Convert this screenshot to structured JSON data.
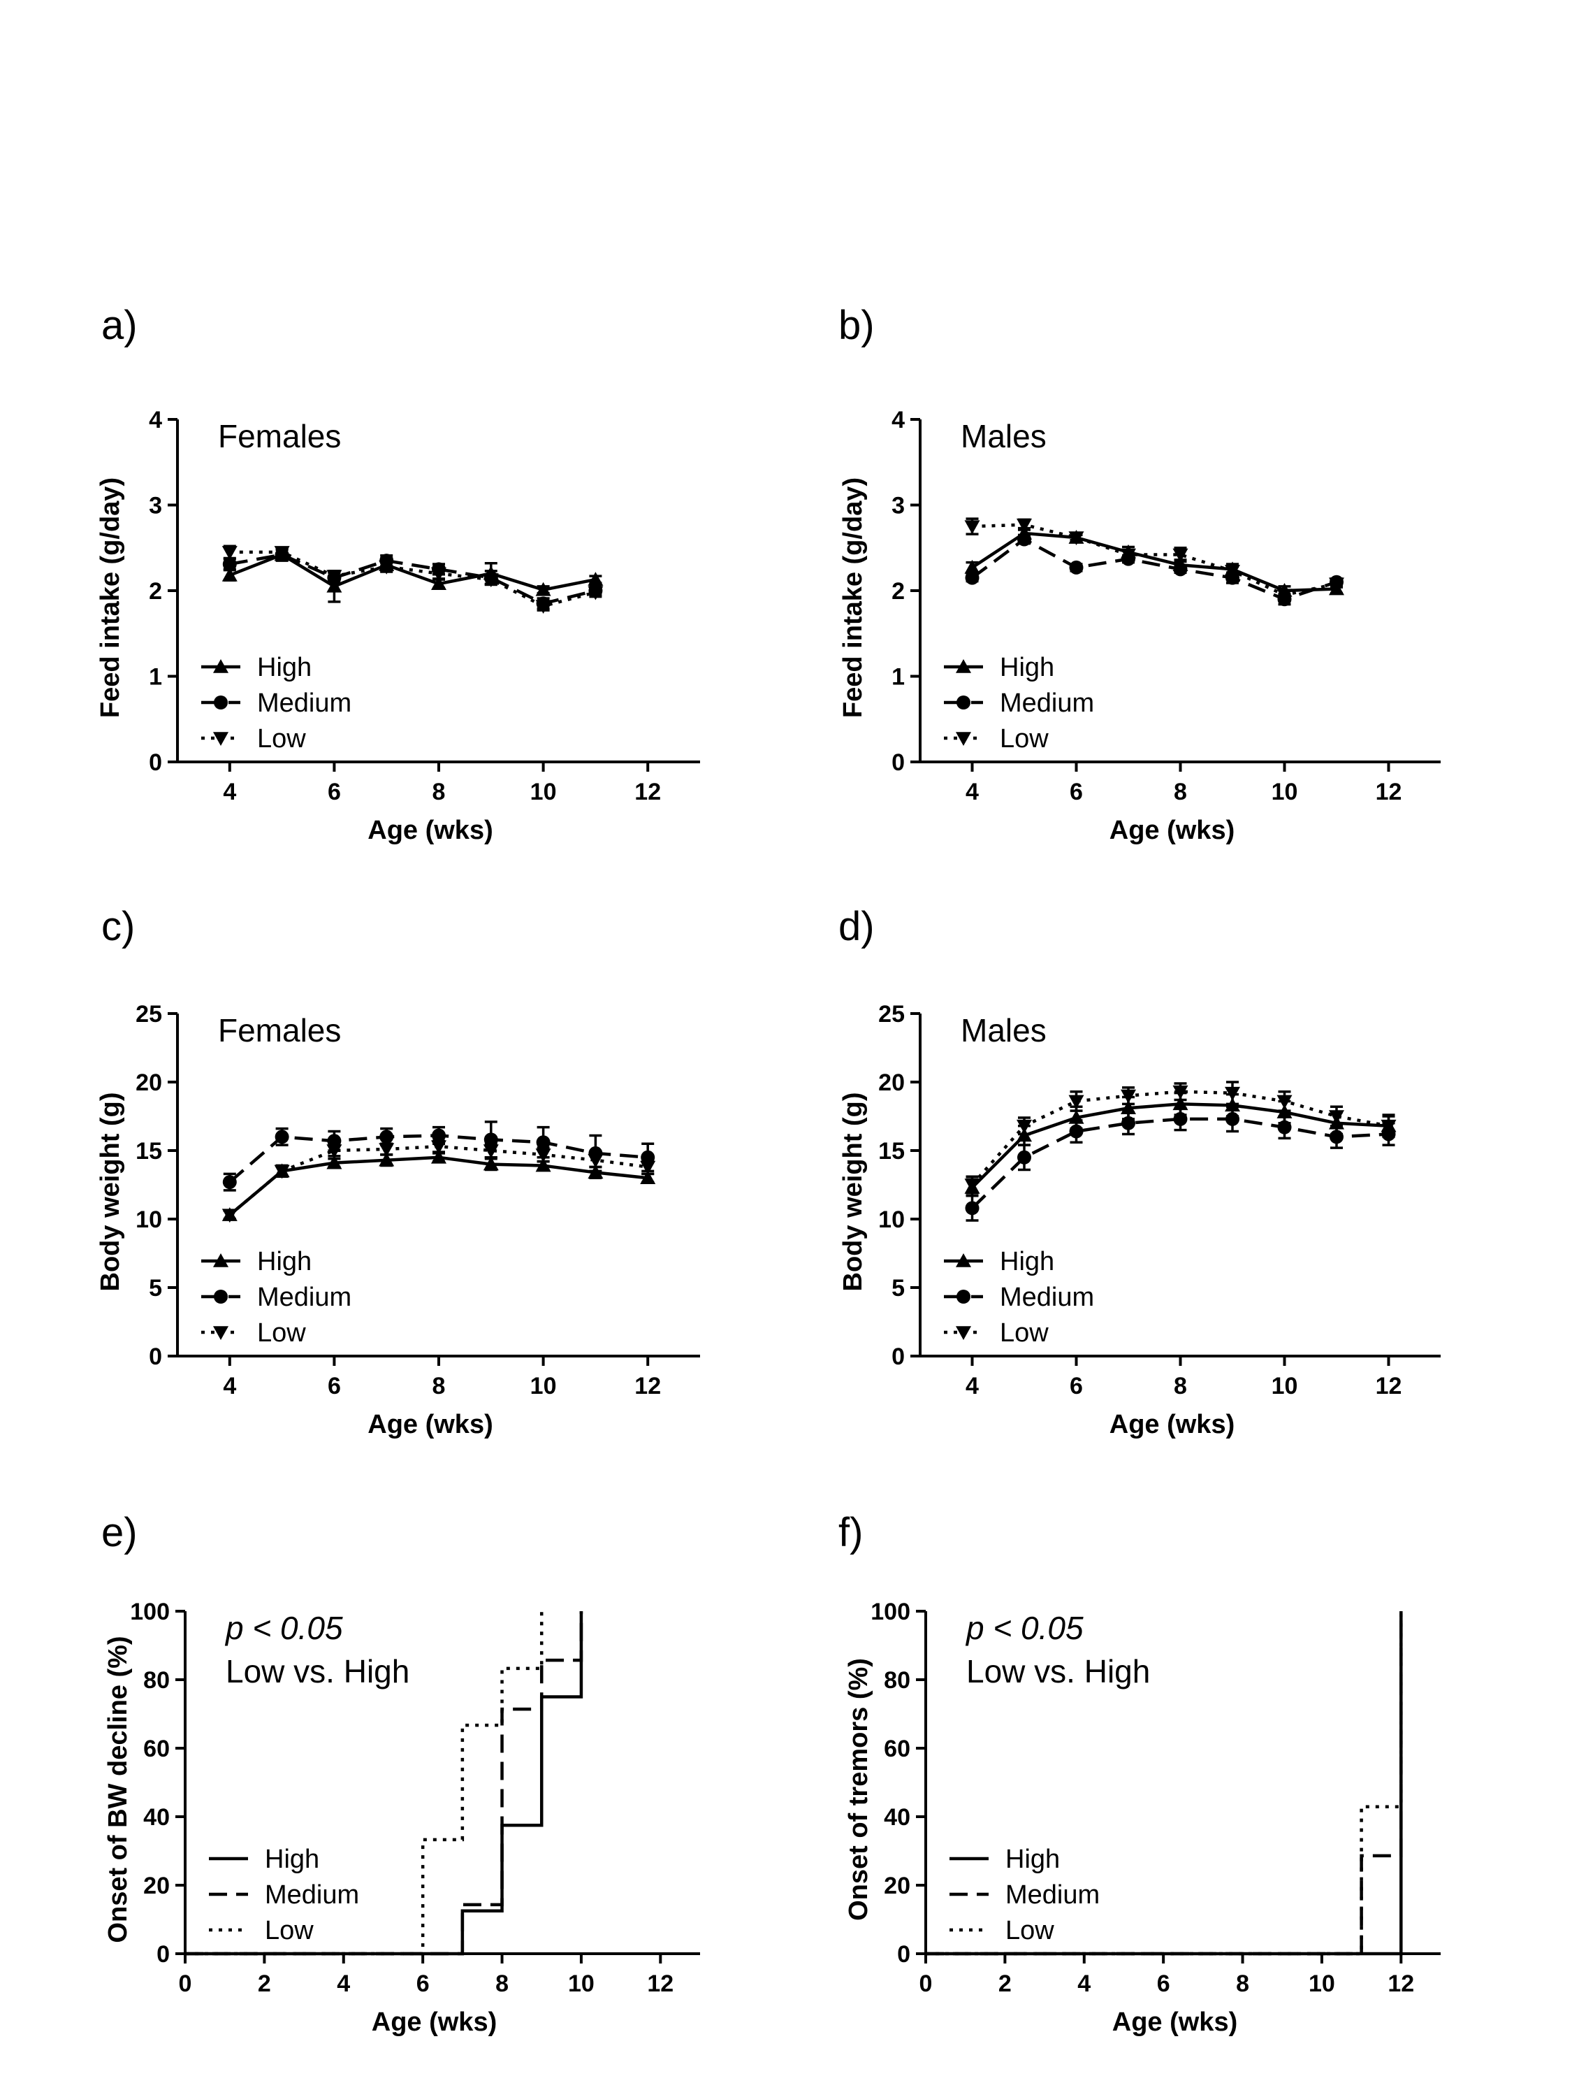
{
  "figure": {
    "background": "#ffffff",
    "ink": "#000000"
  },
  "legend_labels": [
    "High",
    "Medium",
    "Low"
  ],
  "chart_data": [
    {
      "id": "a",
      "panel_label": "a)",
      "type": "line",
      "annotation": [
        "Females"
      ],
      "xlabel": "Age (wks)",
      "ylabel": "Feed intake (g/day)",
      "xlim": [
        3,
        13
      ],
      "ylim": [
        0,
        4
      ],
      "xticks": [
        4,
        6,
        8,
        10,
        12
      ],
      "yticks": [
        0,
        1,
        2,
        3,
        4
      ],
      "legend_position": "bottom-left",
      "series": [
        {
          "name": "High",
          "marker": "triangle-up",
          "dash": "solid",
          "x": [
            4,
            5,
            6,
            7,
            8,
            9,
            10,
            11
          ],
          "y": [
            2.18,
            2.42,
            2.05,
            2.3,
            2.08,
            2.2,
            2.01,
            2.13
          ],
          "err": [
            0.06,
            0.07,
            0.18,
            0.08,
            0.05,
            0.12,
            0.04,
            0.04
          ]
        },
        {
          "name": "Medium",
          "marker": "circle",
          "dash": "dashed",
          "x": [
            4,
            5,
            6,
            7,
            8,
            9,
            10,
            11
          ],
          "y": [
            2.31,
            2.42,
            2.15,
            2.35,
            2.25,
            2.15,
            1.85,
            2.0
          ],
          "err": [
            0.06,
            0.06,
            0.06,
            0.06,
            0.06,
            0.08,
            0.06,
            0.05
          ]
        },
        {
          "name": "Low",
          "marker": "triangle-down",
          "dash": "dotted",
          "x": [
            4,
            5,
            6,
            7,
            8,
            9,
            10,
            11
          ],
          "y": [
            2.45,
            2.45,
            2.17,
            2.28,
            2.2,
            2.13,
            1.82,
            1.98
          ],
          "err": [
            0.07,
            0.05,
            0.05,
            0.05,
            0.06,
            0.06,
            0.05,
            0.05
          ]
        }
      ]
    },
    {
      "id": "b",
      "panel_label": "b)",
      "type": "line",
      "annotation": [
        "Males"
      ],
      "xlabel": "Age (wks)",
      "ylabel": "Feed intake (g/day)",
      "xlim": [
        3,
        13
      ],
      "ylim": [
        0,
        4
      ],
      "xticks": [
        4,
        6,
        8,
        10,
        12
      ],
      "yticks": [
        0,
        1,
        2,
        3,
        4
      ],
      "legend_position": "bottom-left",
      "series": [
        {
          "name": "High",
          "marker": "triangle-up",
          "dash": "solid",
          "x": [
            4,
            5,
            6,
            7,
            8,
            9,
            10,
            11
          ],
          "y": [
            2.27,
            2.67,
            2.62,
            2.45,
            2.3,
            2.25,
            2.0,
            2.02
          ],
          "err": [
            0.06,
            0.06,
            0.03,
            0.06,
            0.06,
            0.06,
            0.05,
            0.05
          ]
        },
        {
          "name": "Medium",
          "marker": "circle",
          "dash": "dashed",
          "x": [
            4,
            5,
            6,
            7,
            8,
            9,
            10,
            11
          ],
          "y": [
            2.15,
            2.6,
            2.27,
            2.37,
            2.25,
            2.15,
            1.9,
            2.1
          ],
          "err": [
            0.04,
            0.05,
            0.04,
            0.04,
            0.04,
            0.06,
            0.06,
            0.04
          ]
        },
        {
          "name": "Low",
          "marker": "triangle-down",
          "dash": "dotted",
          "x": [
            4,
            5,
            6,
            7,
            8,
            9,
            10,
            11
          ],
          "y": [
            2.75,
            2.77,
            2.62,
            2.42,
            2.42,
            2.23,
            1.95,
            2.08
          ],
          "err": [
            0.09,
            0.06,
            0.04,
            0.05,
            0.08,
            0.05,
            0.05,
            0.04
          ]
        }
      ]
    },
    {
      "id": "c",
      "panel_label": "c)",
      "type": "line",
      "annotation": [
        "Females"
      ],
      "xlabel": "Age (wks)",
      "ylabel": "Body weight (g)",
      "xlim": [
        3,
        13
      ],
      "ylim": [
        0,
        25
      ],
      "xticks": [
        4,
        6,
        8,
        10,
        12
      ],
      "yticks": [
        0,
        5,
        10,
        15,
        20,
        25
      ],
      "legend_position": "bottom-left",
      "series": [
        {
          "name": "High",
          "marker": "triangle-up",
          "dash": "solid",
          "x": [
            4,
            5,
            6,
            7,
            8,
            9,
            10,
            11,
            12
          ],
          "y": [
            10.3,
            13.5,
            14.1,
            14.3,
            14.5,
            14.0,
            13.9,
            13.4,
            13.0
          ],
          "err": [
            0.3,
            0.4,
            0.3,
            0.4,
            0.3,
            0.4,
            0.3,
            0.4,
            0.3
          ]
        },
        {
          "name": "Medium",
          "marker": "circle",
          "dash": "dashed",
          "x": [
            4,
            5,
            6,
            7,
            8,
            9,
            10,
            11,
            12
          ],
          "y": [
            12.7,
            16.0,
            15.7,
            16.0,
            16.1,
            15.8,
            15.6,
            14.8,
            14.5
          ],
          "err": [
            0.6,
            0.6,
            0.7,
            0.6,
            0.6,
            1.3,
            1.1,
            1.3,
            1.0
          ]
        },
        {
          "name": "Low",
          "marker": "triangle-down",
          "dash": "dotted",
          "x": [
            4,
            5,
            6,
            7,
            8,
            9,
            10,
            11,
            12
          ],
          "y": [
            10.3,
            13.5,
            15.0,
            15.1,
            15.3,
            15.0,
            14.7,
            14.3,
            13.8
          ],
          "err": [
            0.3,
            0.4,
            0.4,
            0.4,
            0.4,
            0.5,
            0.5,
            0.5,
            0.5
          ]
        }
      ]
    },
    {
      "id": "d",
      "panel_label": "d)",
      "type": "line",
      "annotation": [
        "Males"
      ],
      "xlabel": "Age (wks)",
      "ylabel": "Body weight (g)",
      "xlim": [
        3,
        13
      ],
      "ylim": [
        0,
        25
      ],
      "xticks": [
        4,
        6,
        8,
        10,
        12
      ],
      "yticks": [
        0,
        5,
        10,
        15,
        20,
        25
      ],
      "legend_position": "bottom-left",
      "series": [
        {
          "name": "High",
          "marker": "triangle-up",
          "dash": "solid",
          "x": [
            4,
            5,
            6,
            7,
            8,
            9,
            10,
            11,
            12
          ],
          "y": [
            12.3,
            16.1,
            17.4,
            18.1,
            18.4,
            18.3,
            17.8,
            17.0,
            16.8
          ],
          "err": [
            0.6,
            0.7,
            0.8,
            0.8,
            0.8,
            0.8,
            0.8,
            0.8,
            0.8
          ]
        },
        {
          "name": "Medium",
          "marker": "circle",
          "dash": "dashed",
          "x": [
            4,
            5,
            6,
            7,
            8,
            9,
            10,
            11,
            12
          ],
          "y": [
            10.8,
            14.5,
            16.4,
            17.0,
            17.3,
            17.3,
            16.7,
            16.0,
            16.2
          ],
          "err": [
            0.9,
            0.9,
            0.8,
            0.8,
            0.8,
            0.9,
            0.8,
            0.8,
            0.8
          ]
        },
        {
          "name": "Low",
          "marker": "triangle-down",
          "dash": "dotted",
          "x": [
            4,
            5,
            6,
            7,
            8,
            9,
            10,
            11,
            12
          ],
          "y": [
            12.5,
            16.8,
            18.6,
            19.0,
            19.3,
            19.2,
            18.6,
            17.5,
            16.8
          ],
          "err": [
            0.6,
            0.6,
            0.7,
            0.6,
            0.6,
            0.8,
            0.7,
            0.7,
            0.7
          ]
        }
      ]
    },
    {
      "id": "e",
      "panel_label": "e)",
      "type": "line",
      "subtype": "step",
      "annotation": [
        "p < 0.05",
        "Low vs. High"
      ],
      "xlabel": "Age (wks)",
      "ylabel": "Onset of BW decline (%)",
      "xlim": [
        0,
        13
      ],
      "ylim": [
        0,
        100
      ],
      "xticks": [
        0,
        2,
        4,
        6,
        8,
        10,
        12
      ],
      "yticks": [
        0,
        20,
        40,
        60,
        80,
        100
      ],
      "legend_position": "bottom-left",
      "series": [
        {
          "name": "High",
          "dash": "solid",
          "x": [
            0,
            7,
            8,
            9,
            10
          ],
          "y": [
            0,
            12.5,
            37.5,
            75,
            100
          ]
        },
        {
          "name": "Medium",
          "dash": "dashed",
          "x": [
            0,
            7,
            8,
            9,
            10
          ],
          "y": [
            0,
            14.3,
            71.4,
            85.7,
            100
          ]
        },
        {
          "name": "Low",
          "dash": "dotted",
          "x": [
            0,
            6,
            7,
            8,
            9
          ],
          "y": [
            0,
            33.3,
            66.7,
            83.3,
            100
          ]
        }
      ]
    },
    {
      "id": "f",
      "panel_label": "f)",
      "type": "line",
      "subtype": "step",
      "annotation": [
        "p < 0.05",
        "Low vs. High"
      ],
      "xlabel": "Age (wks)",
      "ylabel": "Onset of tremors (%)",
      "xlim": [
        0,
        13
      ],
      "ylim": [
        0,
        100
      ],
      "xticks": [
        0,
        2,
        4,
        6,
        8,
        10,
        12
      ],
      "yticks": [
        0,
        20,
        40,
        60,
        80,
        100
      ],
      "legend_position": "bottom-left",
      "series": [
        {
          "name": "High",
          "dash": "solid",
          "x": [
            0,
            12
          ],
          "y": [
            0,
            100
          ]
        },
        {
          "name": "Medium",
          "dash": "dashed",
          "x": [
            0,
            11,
            12
          ],
          "y": [
            0,
            28.6,
            100
          ]
        },
        {
          "name": "Low",
          "dash": "dotted",
          "x": [
            0,
            11,
            12
          ],
          "y": [
            0,
            42.9,
            100
          ]
        }
      ]
    }
  ]
}
